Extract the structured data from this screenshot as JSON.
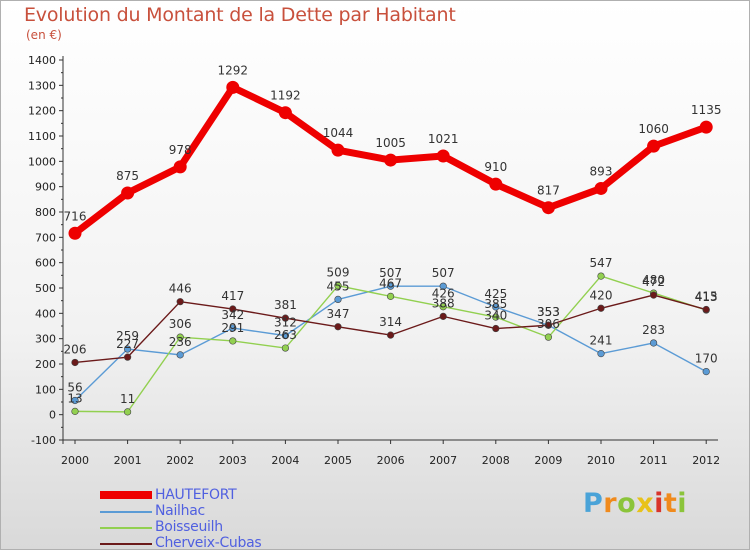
{
  "title": "Evolution du Montant de la Dette par Habitant",
  "subtitle": "(en €)",
  "logo_text": "Proxiti",
  "chart_data": {
    "type": "line",
    "title": "Evolution du Montant de la Dette par Habitant",
    "ylabel": "(en €)",
    "xlabel": "",
    "ylim": [
      -100,
      1400
    ],
    "yticks": [
      -100,
      0,
      100,
      200,
      300,
      400,
      500,
      600,
      700,
      800,
      900,
      1000,
      1100,
      1200,
      1300,
      1400
    ],
    "grid": false,
    "legend_position": "bottom-left",
    "categories": [
      "2000",
      "2001",
      "2002",
      "2003",
      "2004",
      "2005",
      "2006",
      "2007",
      "2008",
      "2009",
      "2010",
      "2011",
      "2012"
    ],
    "series": [
      {
        "name": "HAUTEFORT",
        "color": "#ee0000",
        "values": [
          716,
          875,
          978,
          1292,
          1192,
          1044,
          1005,
          1021,
          910,
          817,
          893,
          1060,
          1135
        ]
      },
      {
        "name": "Nailhac",
        "color": "#5b9bd5",
        "values": [
          56,
          259,
          236,
          342,
          312,
          455,
          507,
          507,
          425,
          353,
          241,
          283,
          170
        ]
      },
      {
        "name": "Boisseuilh",
        "color": "#92d050",
        "values": [
          13,
          11,
          306,
          291,
          263,
          509,
          467,
          426,
          385,
          306,
          547,
          480,
          413
        ]
      },
      {
        "name": "Cherveix-Cubas",
        "color": "#6b1a1a",
        "values": [
          206,
          227,
          446,
          417,
          381,
          347,
          314,
          388,
          340,
          353,
          420,
          472,
          415
        ]
      }
    ]
  }
}
